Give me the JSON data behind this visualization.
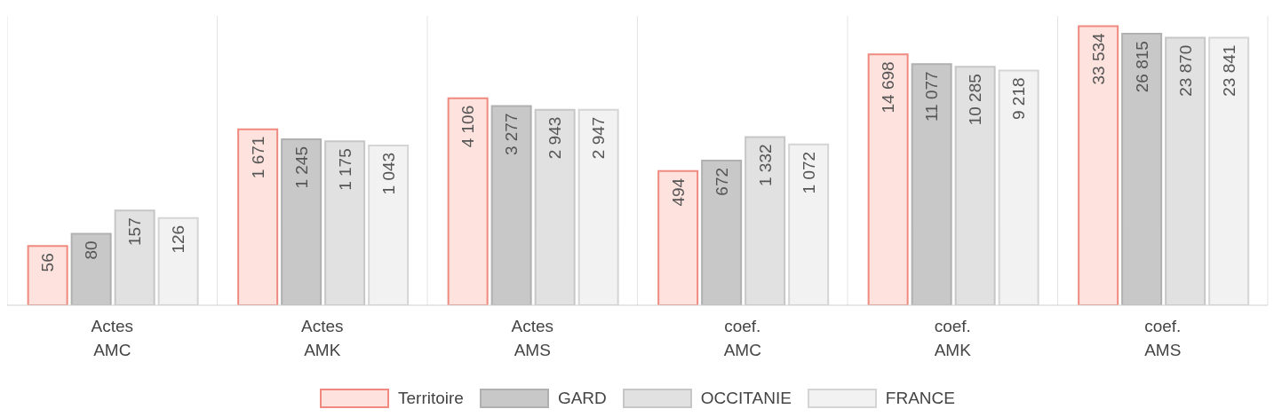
{
  "chart_data": {
    "type": "bar",
    "categories": [
      "Actes AMC",
      "Actes AMK",
      "Actes AMS",
      "coef. AMC",
      "coef. AMK",
      "coef. AMS"
    ],
    "series": [
      {
        "name": "Territoire",
        "color": "#fde2de",
        "values": [
          56,
          1671,
          4106,
          494,
          14698,
          33534
        ]
      },
      {
        "name": "GARD",
        "color": "#c8c8c8",
        "values": [
          80,
          1245,
          3277,
          672,
          11077,
          26815
        ]
      },
      {
        "name": "OCCITANIE",
        "color": "#e1e1e1",
        "values": [
          157,
          1175,
          2943,
          1332,
          10285,
          23870
        ]
      },
      {
        "name": "FRANCE",
        "color": "#f2f2f2",
        "values": [
          126,
          1043,
          2947,
          1072,
          9218,
          23841
        ]
      }
    ],
    "log": true,
    "ylim": [
      10,
      45000
    ],
    "tick_labels": "x",
    "data_labels": true,
    "grid": "x",
    "legend": "bottom"
  }
}
